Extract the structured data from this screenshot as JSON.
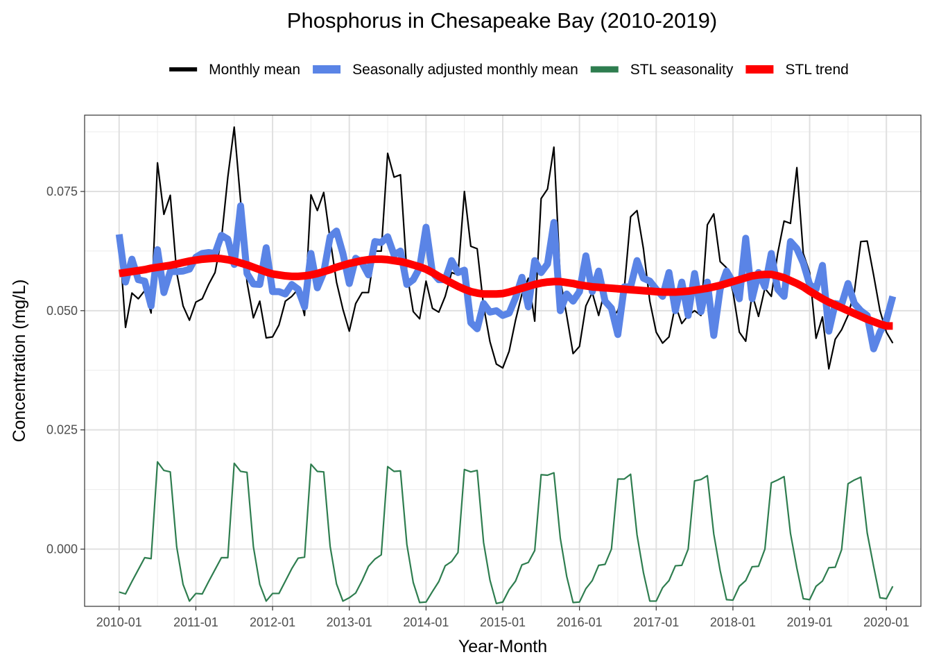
{
  "chart_data": {
    "type": "line",
    "title": "Phosphorus in Chesapeake Bay (2010-2019)",
    "xlabel": "Year-Month",
    "ylabel": "Concentration (mg/L)",
    "x_start": "2010-01",
    "x_end": "2019-12",
    "x_ticks": [
      "2010-01",
      "2011-01",
      "2012-01",
      "2013-01",
      "2014-01",
      "2015-01",
      "2016-01",
      "2017-01",
      "2018-01",
      "2019-01",
      "2020-01"
    ],
    "y_ticks": [
      0.0,
      0.025,
      0.05,
      0.075
    ],
    "y_tick_labels": [
      "0.000",
      "0.025",
      "0.050",
      "0.075"
    ],
    "ylim": [
      -0.012,
      0.091
    ],
    "grid": true,
    "legend_position": "top",
    "series": [
      {
        "name": "Monthly mean",
        "color": "#000000",
        "values": [
          0.0655,
          0.0465,
          0.0537,
          0.0525,
          0.0542,
          0.0495,
          0.081,
          0.0702,
          0.0742,
          0.058,
          0.051,
          0.048,
          0.0518,
          0.0525,
          0.0555,
          0.058,
          0.065,
          0.078,
          0.0885,
          0.073,
          0.056,
          0.0485,
          0.052,
          0.0443,
          0.0445,
          0.047,
          0.052,
          0.053,
          0.0545,
          0.049,
          0.0743,
          0.071,
          0.0748,
          0.065,
          0.056,
          0.0503,
          0.0457,
          0.0515,
          0.0538,
          0.0538,
          0.0625,
          0.0625,
          0.083,
          0.078,
          0.0785,
          0.058,
          0.0498,
          0.0483,
          0.0562,
          0.0505,
          0.0497,
          0.053,
          0.058,
          0.0575,
          0.075,
          0.0635,
          0.063,
          0.051,
          0.0435,
          0.0388,
          0.038,
          0.0415,
          0.048,
          0.0535,
          0.0568,
          0.0478,
          0.0735,
          0.0755,
          0.0843,
          0.0565,
          0.049,
          0.041,
          0.0425,
          0.051,
          0.0538,
          0.049,
          0.0545,
          0.0483,
          0.05,
          0.0545,
          0.0697,
          0.071,
          0.063,
          0.052,
          0.0455,
          0.0432,
          0.0445,
          0.0512,
          0.0473,
          0.049,
          0.05,
          0.049,
          0.068,
          0.0703,
          0.0603,
          0.059,
          0.054,
          0.0455,
          0.0436,
          0.0535,
          0.0488,
          0.0547,
          0.053,
          0.062,
          0.0688,
          0.0683,
          0.08,
          0.062,
          0.058,
          0.0442,
          0.0487,
          0.0378,
          0.044,
          0.046,
          0.049,
          0.054,
          0.0645,
          0.0646,
          0.0575,
          0.05,
          0.0455,
          0.0432
        ]
      },
      {
        "name": "Seasonally adjusted monthly mean",
        "color": "#5a84e6",
        "values": [
          0.066,
          0.056,
          0.0608,
          0.0565,
          0.0562,
          0.051,
          0.0628,
          0.0538,
          0.0582,
          0.0582,
          0.0583,
          0.0587,
          0.0612,
          0.062,
          0.0622,
          0.062,
          0.0658,
          0.065,
          0.0597,
          0.072,
          0.0578,
          0.0556,
          0.0555,
          0.0632,
          0.054,
          0.054,
          0.0535,
          0.0555,
          0.0545,
          0.0508,
          0.062,
          0.0548,
          0.058,
          0.0655,
          0.0667,
          0.062,
          0.0557,
          0.061,
          0.06,
          0.0575,
          0.0645,
          0.0643,
          0.0655,
          0.0617,
          0.0625,
          0.0555,
          0.0565,
          0.059,
          0.0675,
          0.058,
          0.0565,
          0.0565,
          0.0605,
          0.058,
          0.0585,
          0.0475,
          0.0462,
          0.0515,
          0.0497,
          0.05,
          0.049,
          0.0495,
          0.0527,
          0.057,
          0.0508,
          0.0605,
          0.058,
          0.0598,
          0.0685,
          0.05,
          0.0535,
          0.052,
          0.054,
          0.0615,
          0.054,
          0.0583,
          0.052,
          0.0505,
          0.045,
          0.055,
          0.055,
          0.0605,
          0.0568,
          0.0562,
          0.0545,
          0.053,
          0.058,
          0.05,
          0.056,
          0.049,
          0.0578,
          0.0498,
          0.056,
          0.0448,
          0.0545,
          0.0583,
          0.056,
          0.0525,
          0.0652,
          0.0525,
          0.058,
          0.055,
          0.062,
          0.0545,
          0.053,
          0.0645,
          0.063,
          0.06,
          0.0555,
          0.0545,
          0.0595,
          0.0457,
          0.0515,
          0.0513,
          0.0557,
          0.0515,
          0.05,
          0.049,
          0.042,
          0.0455,
          0.048,
          0.053
        ]
      },
      {
        "name": "STL seasonality",
        "color": "#2e7d4f",
        "values": [
          -0.009,
          -0.0094,
          -0.0068,
          -0.0043,
          -0.0018,
          -0.002,
          0.0183,
          0.0165,
          0.0162,
          0.0005,
          -0.0074,
          -0.0109,
          -0.0093,
          -0.0094,
          -0.0068,
          -0.0043,
          -0.0018,
          -0.0018,
          0.018,
          0.0163,
          0.0161,
          0.0005,
          -0.0074,
          -0.0109,
          -0.0093,
          -0.0093,
          -0.0067,
          -0.0041,
          -0.0019,
          -0.0017,
          0.0178,
          0.0163,
          0.0162,
          0.0006,
          -0.0073,
          -0.0109,
          -0.0102,
          -0.0092,
          -0.0066,
          -0.0036,
          -0.0021,
          -0.0012,
          0.0173,
          0.0163,
          0.0164,
          0.001,
          -0.007,
          -0.0112,
          -0.0111,
          -0.0089,
          -0.0068,
          -0.0035,
          -0.0026,
          -0.0007,
          0.0167,
          0.0162,
          0.0165,
          0.0014,
          -0.0065,
          -0.0114,
          -0.0111,
          -0.0085,
          -0.0067,
          -0.0033,
          -0.0028,
          -0.0003,
          0.0156,
          0.0155,
          0.016,
          0.0023,
          -0.0057,
          -0.0112,
          -0.0111,
          -0.0083,
          -0.0066,
          -0.0034,
          -0.0032,
          0.0,
          0.0147,
          0.0147,
          0.0157,
          0.003,
          -0.0049,
          -0.0109,
          -0.0109,
          -0.0081,
          -0.0066,
          -0.0035,
          -0.0034,
          0.0,
          0.0143,
          0.0146,
          0.0154,
          0.0032,
          -0.0045,
          -0.0106,
          -0.0107,
          -0.0078,
          -0.0066,
          -0.0037,
          -0.0036,
          0.0,
          0.0139,
          0.0145,
          0.0152,
          0.0033,
          -0.004,
          -0.0104,
          -0.0106,
          -0.0078,
          -0.0067,
          -0.0039,
          -0.0038,
          -0.0001,
          0.0137,
          0.0145,
          0.0151,
          0.0034,
          -0.0036,
          -0.0102,
          -0.0104,
          -0.0078
        ]
      },
      {
        "name": "STL trend",
        "color": "#ff0000",
        "values": [
          0.0578,
          0.058,
          0.0582,
          0.0584,
          0.0586,
          0.0589,
          0.0591,
          0.0593,
          0.0595,
          0.0598,
          0.0601,
          0.0604,
          0.0606,
          0.0608,
          0.0609,
          0.061,
          0.0609,
          0.0607,
          0.0604,
          0.06,
          0.0596,
          0.0591,
          0.0586,
          0.0581,
          0.0577,
          0.0575,
          0.0573,
          0.0572,
          0.0572,
          0.0573,
          0.0575,
          0.0578,
          0.0582,
          0.0586,
          0.0591,
          0.0595,
          0.0599,
          0.0602,
          0.0605,
          0.0607,
          0.0608,
          0.0608,
          0.0607,
          0.0605,
          0.0603,
          0.06,
          0.0596,
          0.0592,
          0.0587,
          0.058,
          0.0572,
          0.0565,
          0.0558,
          0.0551,
          0.0545,
          0.054,
          0.0537,
          0.0535,
          0.0535,
          0.0535,
          0.0536,
          0.0539,
          0.0543,
          0.0547,
          0.0551,
          0.0555,
          0.0558,
          0.056,
          0.0561,
          0.0561,
          0.0559,
          0.0557,
          0.0554,
          0.0552,
          0.055,
          0.0549,
          0.0548,
          0.0547,
          0.0546,
          0.0545,
          0.0544,
          0.0543,
          0.0542,
          0.0541,
          0.054,
          0.0539,
          0.0539,
          0.0539,
          0.054,
          0.0541,
          0.0543,
          0.0545,
          0.0547,
          0.055,
          0.0553,
          0.0557,
          0.0561,
          0.0565,
          0.0569,
          0.0573,
          0.0575,
          0.0576,
          0.0576,
          0.0573,
          0.0569,
          0.0563,
          0.0557,
          0.055,
          0.0541,
          0.0533,
          0.0525,
          0.0518,
          0.0512,
          0.0506,
          0.05,
          0.0494,
          0.0488,
          0.0482,
          0.0477,
          0.0472,
          0.0468,
          0.0468
        ]
      }
    ]
  }
}
